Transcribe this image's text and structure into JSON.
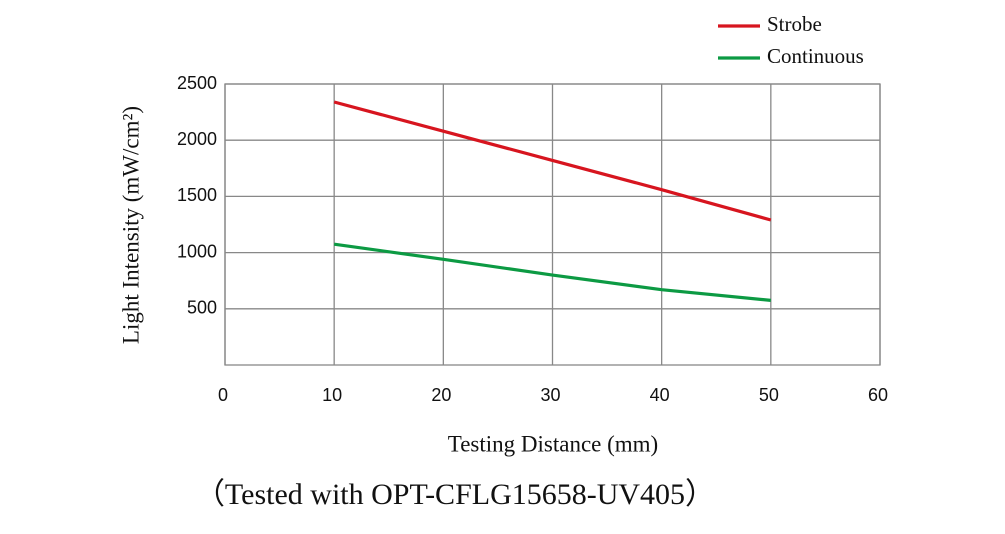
{
  "chart_data": {
    "type": "line",
    "x_label": "Testing Distance (mm)",
    "y_label": "Light Intensity (mW/cm²)",
    "caption": "（Tested with OPT-CFLG15658-UV405）",
    "x": [
      10,
      20,
      30,
      40,
      50
    ],
    "series": [
      {
        "name": "Strobe",
        "color": "#d7151f",
        "values": [
          2340,
          2080,
          1820,
          1560,
          1290
        ]
      },
      {
        "name": "Continuous",
        "color": "#0c9a43",
        "values": [
          1075,
          940,
          800,
          670,
          575
        ]
      }
    ],
    "xlim": [
      0,
      60
    ],
    "xticks": [
      0,
      10,
      20,
      30,
      40,
      50,
      60
    ],
    "ylim": [
      0,
      2500
    ],
    "yticks": [
      500,
      1000,
      1500,
      2000,
      2500
    ],
    "grid": true,
    "legend": "top-right"
  }
}
